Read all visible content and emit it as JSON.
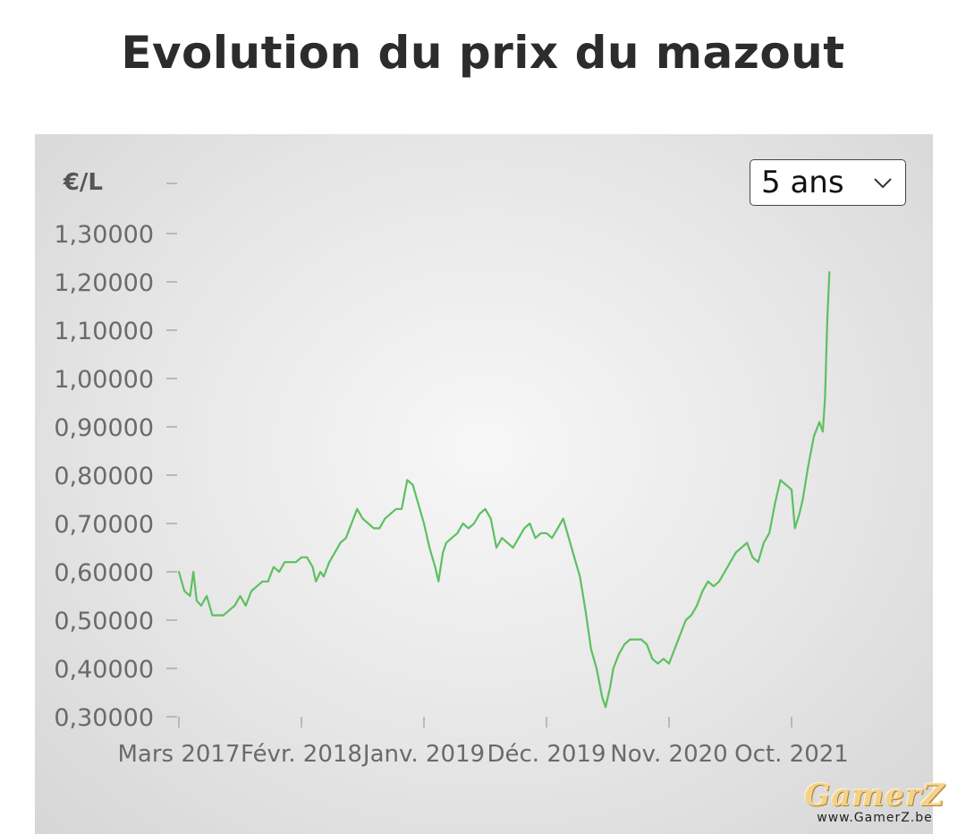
{
  "page": {
    "title": "Evolution du prix du mazout"
  },
  "controls": {
    "range_label": "5 ans"
  },
  "watermark": {
    "brand": "GamerZ",
    "url": "www.GamerZ.be"
  },
  "chart_data": {
    "type": "line",
    "title": "Evolution du prix du mazout",
    "ylabel": "€/L",
    "xlabel": "",
    "ylim": [
      0.3,
      1.38
    ],
    "y_ticks": [
      "1,30000",
      "1,20000",
      "1,10000",
      "1,00000",
      "0,90000",
      "0,80000",
      "0,70000",
      "0,60000",
      "0,50000",
      "0,40000",
      "0,30000"
    ],
    "y_tick_values": [
      1.3,
      1.2,
      1.1,
      1.0,
      0.9,
      0.8,
      0.7,
      0.6,
      0.5,
      0.4,
      0.3
    ],
    "x_ticks": [
      "Mars 2017",
      "Févr. 2018",
      "Janv. 2019",
      "Déc. 2019",
      "Nov. 2020",
      "Oct. 2021"
    ],
    "x_tick_values": [
      0,
      11,
      22,
      33,
      44,
      55
    ],
    "x_unit": "months since Mars 2017",
    "grid": false,
    "line_color": "#5cc060",
    "series": [
      {
        "values": [
          [
            0,
            0.6
          ],
          [
            0.5,
            0.56
          ],
          [
            1,
            0.55
          ],
          [
            1.3,
            0.6
          ],
          [
            1.6,
            0.54
          ],
          [
            2,
            0.53
          ],
          [
            2.5,
            0.55
          ],
          [
            3,
            0.51
          ],
          [
            3.5,
            0.51
          ],
          [
            4,
            0.51
          ],
          [
            4.5,
            0.52
          ],
          [
            5,
            0.53
          ],
          [
            5.5,
            0.55
          ],
          [
            6,
            0.53
          ],
          [
            6.5,
            0.56
          ],
          [
            7,
            0.57
          ],
          [
            7.5,
            0.58
          ],
          [
            8,
            0.58
          ],
          [
            8.5,
            0.61
          ],
          [
            9,
            0.6
          ],
          [
            9.5,
            0.62
          ],
          [
            10,
            0.62
          ],
          [
            10.5,
            0.62
          ],
          [
            11,
            0.63
          ],
          [
            11.5,
            0.63
          ],
          [
            12,
            0.61
          ],
          [
            12.3,
            0.58
          ],
          [
            12.7,
            0.6
          ],
          [
            13,
            0.59
          ],
          [
            13.5,
            0.62
          ],
          [
            14,
            0.64
          ],
          [
            14.5,
            0.66
          ],
          [
            15,
            0.67
          ],
          [
            15.5,
            0.7
          ],
          [
            16,
            0.73
          ],
          [
            16.5,
            0.71
          ],
          [
            17,
            0.7
          ],
          [
            17.5,
            0.69
          ],
          [
            18,
            0.69
          ],
          [
            18.5,
            0.71
          ],
          [
            19,
            0.72
          ],
          [
            19.5,
            0.73
          ],
          [
            20,
            0.73
          ],
          [
            20.5,
            0.79
          ],
          [
            21,
            0.78
          ],
          [
            21.5,
            0.74
          ],
          [
            22,
            0.7
          ],
          [
            22.5,
            0.65
          ],
          [
            23,
            0.61
          ],
          [
            23.3,
            0.58
          ],
          [
            23.7,
            0.64
          ],
          [
            24,
            0.66
          ],
          [
            24.5,
            0.67
          ],
          [
            25,
            0.68
          ],
          [
            25.5,
            0.7
          ],
          [
            26,
            0.69
          ],
          [
            26.5,
            0.7
          ],
          [
            27,
            0.72
          ],
          [
            27.5,
            0.73
          ],
          [
            28,
            0.71
          ],
          [
            28.5,
            0.65
          ],
          [
            29,
            0.67
          ],
          [
            29.5,
            0.66
          ],
          [
            30,
            0.65
          ],
          [
            30.5,
            0.67
          ],
          [
            31,
            0.69
          ],
          [
            31.5,
            0.7
          ],
          [
            32,
            0.67
          ],
          [
            32.5,
            0.68
          ],
          [
            33,
            0.68
          ],
          [
            33.5,
            0.67
          ],
          [
            34,
            0.69
          ],
          [
            34.5,
            0.71
          ],
          [
            35,
            0.67
          ],
          [
            35.5,
            0.63
          ],
          [
            36,
            0.59
          ],
          [
            36.5,
            0.52
          ],
          [
            37,
            0.44
          ],
          [
            37.5,
            0.4
          ],
          [
            38,
            0.34
          ],
          [
            38.3,
            0.32
          ],
          [
            38.7,
            0.36
          ],
          [
            39,
            0.4
          ],
          [
            39.5,
            0.43
          ],
          [
            40,
            0.45
          ],
          [
            40.5,
            0.46
          ],
          [
            41,
            0.46
          ],
          [
            41.5,
            0.46
          ],
          [
            42,
            0.45
          ],
          [
            42.5,
            0.42
          ],
          [
            43,
            0.41
          ],
          [
            43.5,
            0.42
          ],
          [
            44,
            0.41
          ],
          [
            44.5,
            0.44
          ],
          [
            45,
            0.47
          ],
          [
            45.5,
            0.5
          ],
          [
            46,
            0.51
          ],
          [
            46.5,
            0.53
          ],
          [
            47,
            0.56
          ],
          [
            47.5,
            0.58
          ],
          [
            48,
            0.57
          ],
          [
            48.5,
            0.58
          ],
          [
            49,
            0.6
          ],
          [
            49.5,
            0.62
          ],
          [
            50,
            0.64
          ],
          [
            50.5,
            0.65
          ],
          [
            51,
            0.66
          ],
          [
            51.5,
            0.63
          ],
          [
            52,
            0.62
          ],
          [
            52.5,
            0.66
          ],
          [
            53,
            0.68
          ],
          [
            53.5,
            0.74
          ],
          [
            54,
            0.79
          ],
          [
            54.5,
            0.78
          ],
          [
            55,
            0.77
          ],
          [
            55.3,
            0.69
          ],
          [
            55.7,
            0.72
          ],
          [
            56,
            0.75
          ],
          [
            56.5,
            0.82
          ],
          [
            57,
            0.88
          ],
          [
            57.5,
            0.91
          ],
          [
            57.8,
            0.89
          ],
          [
            58,
            0.96
          ],
          [
            58.2,
            1.12
          ],
          [
            58.4,
            1.22
          ]
        ]
      }
    ]
  }
}
